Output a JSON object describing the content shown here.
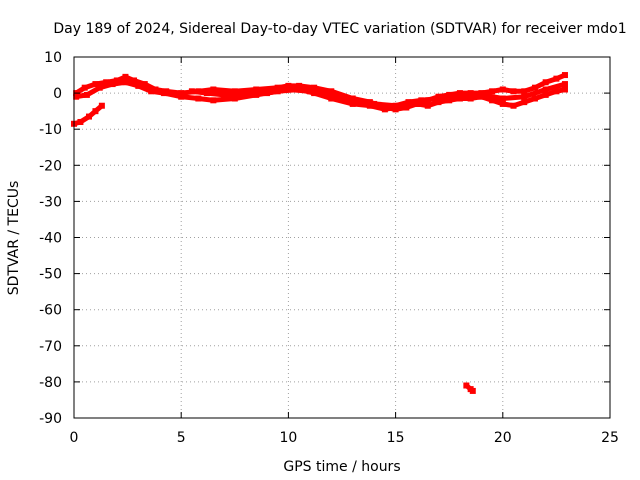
{
  "chart_data": {
    "type": "scatter",
    "title": "Day 189 of 2024, Sidereal Day-to-day VTEC variation (SDTVAR) for receiver mdo1",
    "xlabel": "GPS time / hours",
    "ylabel": "SDTVAR / TECUs",
    "xlim": [
      0,
      25
    ],
    "ylim": [
      -90,
      10
    ],
    "xticks": [
      0,
      5,
      10,
      15,
      20,
      25
    ],
    "yticks": [
      10,
      0,
      -10,
      -20,
      -30,
      -40,
      -50,
      -60,
      -70,
      -80,
      -90
    ],
    "xtick_labels": [
      "0",
      "5",
      "10",
      "15",
      "20",
      "25"
    ],
    "ytick_labels": [
      "10",
      "0",
      "-10",
      "-20",
      "-30",
      "-40",
      "-50",
      "-60",
      "-70",
      "-80",
      "-90"
    ],
    "grid": true,
    "color": "#ff0000",
    "series": [
      {
        "name": "track-upper",
        "points": [
          [
            0.1,
            0.0
          ],
          [
            0.5,
            1.5
          ],
          [
            1.0,
            2.5
          ],
          [
            1.5,
            3.0
          ],
          [
            2.0,
            3.5
          ],
          [
            2.4,
            4.5
          ],
          [
            2.8,
            3.5
          ],
          [
            3.3,
            2.5
          ],
          [
            3.8,
            1.0
          ],
          [
            4.3,
            0.5
          ],
          [
            5.0,
            0.0
          ],
          [
            5.8,
            0.5
          ],
          [
            6.5,
            1.0
          ],
          [
            7.5,
            0.5
          ],
          [
            8.5,
            1.0
          ],
          [
            9.5,
            1.5
          ],
          [
            10.0,
            2.0
          ],
          [
            10.5,
            2.0
          ],
          [
            11.2,
            1.5
          ],
          [
            12.0,
            0.5
          ],
          [
            13.0,
            -1.5
          ],
          [
            13.8,
            -2.5
          ],
          [
            14.5,
            -4.0
          ],
          [
            15.0,
            -4.5
          ],
          [
            15.5,
            -4.0
          ],
          [
            16.0,
            -3.0
          ],
          [
            16.5,
            -2.0
          ],
          [
            17.0,
            -1.0
          ],
          [
            17.5,
            -0.5
          ],
          [
            18.0,
            0.0
          ],
          [
            18.5,
            0.0
          ],
          [
            19.0,
            0.0
          ],
          [
            19.5,
            0.5
          ],
          [
            20.0,
            1.0
          ],
          [
            20.5,
            0.5
          ],
          [
            21.0,
            0.5
          ],
          [
            21.5,
            1.5
          ],
          [
            22.0,
            3.0
          ],
          [
            22.5,
            4.0
          ],
          [
            22.9,
            5.0
          ]
        ]
      },
      {
        "name": "track-lower",
        "points": [
          [
            0.1,
            -1.0
          ],
          [
            0.6,
            -0.5
          ],
          [
            1.2,
            1.5
          ],
          [
            1.8,
            2.5
          ],
          [
            2.4,
            3.0
          ],
          [
            3.0,
            2.0
          ],
          [
            3.6,
            0.5
          ],
          [
            4.2,
            0.0
          ],
          [
            5.0,
            -1.0
          ],
          [
            5.8,
            -1.5
          ],
          [
            6.5,
            -2.0
          ],
          [
            7.5,
            -1.5
          ],
          [
            8.5,
            -0.5
          ],
          [
            9.5,
            0.5
          ],
          [
            10.5,
            1.0
          ],
          [
            11.2,
            0.0
          ],
          [
            12.0,
            -1.5
          ],
          [
            13.0,
            -3.0
          ],
          [
            13.8,
            -3.5
          ],
          [
            14.5,
            -4.5
          ],
          [
            15.0,
            -4.0
          ],
          [
            15.5,
            -3.5
          ],
          [
            16.0,
            -3.0
          ],
          [
            16.5,
            -3.5
          ],
          [
            17.0,
            -2.5
          ],
          [
            17.5,
            -2.0
          ],
          [
            18.0,
            -1.5
          ],
          [
            18.5,
            -1.5
          ],
          [
            19.0,
            -1.0
          ],
          [
            19.5,
            -2.0
          ],
          [
            20.0,
            -3.0
          ],
          [
            20.5,
            -3.5
          ],
          [
            21.0,
            -2.5
          ],
          [
            21.5,
            -1.5
          ],
          [
            22.0,
            -0.5
          ],
          [
            22.5,
            0.5
          ],
          [
            22.9,
            1.0
          ]
        ]
      },
      {
        "name": "track-mid",
        "points": [
          [
            5.5,
            0.5
          ],
          [
            6.2,
            0.0
          ],
          [
            7.0,
            -0.5
          ],
          [
            8.0,
            0.0
          ],
          [
            9.0,
            0.0
          ],
          [
            10.0,
            1.0
          ],
          [
            11.0,
            0.5
          ],
          [
            12.0,
            -0.5
          ],
          [
            13.0,
            -2.0
          ],
          [
            14.0,
            -3.0
          ],
          [
            15.0,
            -3.5
          ],
          [
            15.6,
            -2.5
          ],
          [
            16.2,
            -2.0
          ],
          [
            17.0,
            -1.5
          ],
          [
            18.0,
            -1.0
          ],
          [
            19.0,
            -0.5
          ],
          [
            20.0,
            -1.5
          ],
          [
            21.0,
            -1.0
          ],
          [
            22.0,
            1.0
          ],
          [
            22.9,
            2.5
          ]
        ]
      },
      {
        "name": "early-dip",
        "points": [
          [
            0.0,
            -8.5
          ],
          [
            0.3,
            -8.0
          ],
          [
            0.7,
            -6.5
          ],
          [
            1.0,
            -5.0
          ],
          [
            1.3,
            -3.5
          ]
        ]
      },
      {
        "name": "outlier",
        "points": [
          [
            18.3,
            -81.0
          ],
          [
            18.5,
            -82.0
          ],
          [
            18.6,
            -82.5
          ]
        ]
      }
    ]
  }
}
